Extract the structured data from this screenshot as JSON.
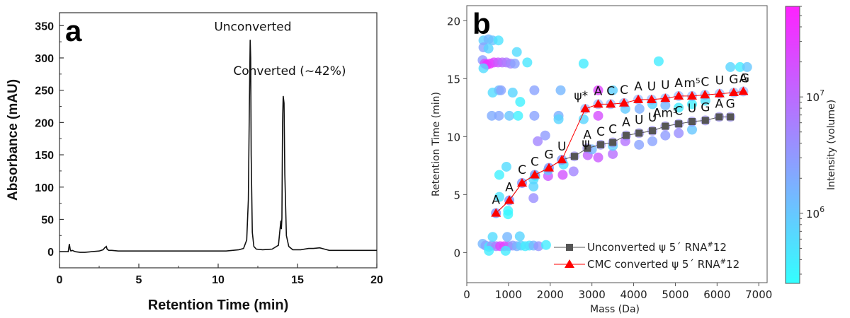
{
  "chart_data": [
    {
      "panel_label": "a",
      "type": "line",
      "title": "",
      "xlabel": "Retention Time (min)",
      "ylabel": "Absorbance (mAU)",
      "xlim": [
        0,
        20
      ],
      "ylim": [
        -25,
        370
      ],
      "xticks": [
        0,
        5,
        10,
        15,
        20
      ],
      "yticks": [
        0,
        50,
        100,
        150,
        200,
        250,
        300,
        350
      ],
      "grid": false,
      "annotations": [
        {
          "text": "Unconverted",
          "x": 12.05,
          "y": 328
        },
        {
          "text": "Converted (~42%)",
          "x": 14.15,
          "y": 241
        }
      ],
      "series": [
        {
          "name": "chromatogram",
          "color": "#111111",
          "x": [
            0,
            0.55,
            0.62,
            0.68,
            0.72,
            0.8,
            1.0,
            1.3,
            1.6,
            2.0,
            2.5,
            2.75,
            2.85,
            2.95,
            3.0,
            3.1,
            3.3,
            3.7,
            4.0,
            5.0,
            7.0,
            9.0,
            10.5,
            11.3,
            11.6,
            11.8,
            11.9,
            11.97,
            12.02,
            12.05,
            12.08,
            12.15,
            12.25,
            12.4,
            12.8,
            13.4,
            13.8,
            13.95,
            13.98,
            14.02,
            14.06,
            14.1,
            14.15,
            14.2,
            14.3,
            14.45,
            14.7,
            15.2,
            15.7,
            16.0,
            16.4,
            16.7,
            17.0,
            18.0,
            20.0
          ],
          "y": [
            0,
            0,
            12,
            3,
            1,
            2,
            0,
            -1,
            -1,
            0,
            1,
            3,
            6,
            8,
            4,
            2,
            2,
            1,
            1,
            1,
            1,
            1,
            1,
            3,
            5,
            18,
            80,
            230,
            328,
            300,
            150,
            30,
            8,
            4,
            3,
            4,
            10,
            48,
            35,
            52,
            200,
            241,
            230,
            120,
            25,
            8,
            3,
            3,
            5,
            5,
            6,
            4,
            2,
            2,
            2
          ]
        }
      ]
    },
    {
      "panel_label": "b",
      "type": "scatter",
      "title": "",
      "xlabel": "Mass (Da)",
      "ylabel": "Retention Time (min)",
      "xlim": [
        0,
        7200
      ],
      "ylim": [
        -2.6,
        21.3
      ],
      "xticks": [
        0,
        1000,
        2000,
        3000,
        4000,
        5000,
        6000,
        7000
      ],
      "yticks": [
        0,
        5,
        10,
        15,
        20
      ],
      "grid": false,
      "legend_position": "bottom-right",
      "colorbar": {
        "label": "Intensity (volume)",
        "scale": "log",
        "range": [
          250000,
          60000000
        ],
        "ticks": [
          {
            "value": 1000000,
            "label": "10",
            "exp": "6"
          },
          {
            "value": 10000000,
            "label": "10",
            "exp": "7"
          }
        ],
        "colormap": "cool",
        "low_color": "#33ffff",
        "high_color": "#ff22ff"
      },
      "features": [
        {
          "mass": 400,
          "rt": 18.3,
          "intensity": 800000
        },
        {
          "mass": 520,
          "rt": 18.4,
          "intensity": 1500000
        },
        {
          "mass": 620,
          "rt": 18.3,
          "intensity": 1100000
        },
        {
          "mass": 760,
          "rt": 18.3,
          "intensity": 500000
        },
        {
          "mass": 400,
          "rt": 17.7,
          "intensity": 2500000
        },
        {
          "mass": 520,
          "rt": 17.6,
          "intensity": 700000
        },
        {
          "mass": 1200,
          "rt": 17.3,
          "intensity": 600000
        },
        {
          "mass": 380,
          "rt": 16.6,
          "intensity": 3000000
        },
        {
          "mass": 430,
          "rt": 16.3,
          "intensity": 20000000
        },
        {
          "mass": 480,
          "rt": 16.2,
          "intensity": 50000000
        },
        {
          "mass": 560,
          "rt": 16.3,
          "intensity": 40000000
        },
        {
          "mass": 650,
          "rt": 16.4,
          "intensity": 25000000
        },
        {
          "mass": 750,
          "rt": 16.4,
          "intensity": 15000000
        },
        {
          "mass": 850,
          "rt": 16.4,
          "intensity": 9000000
        },
        {
          "mass": 950,
          "rt": 16.4,
          "intensity": 7000000
        },
        {
          "mass": 1050,
          "rt": 16.3,
          "intensity": 5000000
        },
        {
          "mass": 1150,
          "rt": 16.3,
          "intensity": 2500000
        },
        {
          "mass": 400,
          "rt": 15.9,
          "intensity": 600000
        },
        {
          "mass": 1450,
          "rt": 16.4,
          "intensity": 450000
        },
        {
          "mass": 2800,
          "rt": 16.3,
          "intensity": 400000
        },
        {
          "mass": 4600,
          "rt": 16.5,
          "intensity": 400000
        },
        {
          "mass": 620,
          "rt": 13.8,
          "intensity": 600000
        },
        {
          "mass": 770,
          "rt": 14.0,
          "intensity": 1200000
        },
        {
          "mass": 820,
          "rt": 14.0,
          "intensity": 2500000
        },
        {
          "mass": 1100,
          "rt": 13.8,
          "intensity": 700000
        },
        {
          "mass": 1620,
          "rt": 14.0,
          "intensity": 2500000
        },
        {
          "mass": 2250,
          "rt": 14.0,
          "intensity": 1500000
        },
        {
          "mass": 1280,
          "rt": 13.0,
          "intensity": 350000
        },
        {
          "mass": 600,
          "rt": 11.8,
          "intensity": 2000000
        },
        {
          "mass": 770,
          "rt": 11.8,
          "intensity": 2200000
        },
        {
          "mass": 1020,
          "rt": 11.8,
          "intensity": 1000000
        },
        {
          "mass": 1230,
          "rt": 11.8,
          "intensity": 350000
        },
        {
          "mass": 1620,
          "rt": 11.8,
          "intensity": 2500000
        },
        {
          "mass": 2200,
          "rt": 11.8,
          "intensity": 1800000
        },
        {
          "mass": 2200,
          "rt": 11.5,
          "intensity": 700000
        },
        {
          "mass": 1700,
          "rt": 9.6,
          "intensity": 5000000
        },
        {
          "mass": 1880,
          "rt": 10.1,
          "intensity": 3000000
        },
        {
          "mass": 2800,
          "rt": 11.5,
          "intensity": 700000
        },
        {
          "mass": 3150,
          "rt": 11.8,
          "intensity": 20000000
        },
        {
          "mass": 950,
          "rt": 7.4,
          "intensity": 600000
        },
        {
          "mass": 780,
          "rt": 6.7,
          "intensity": 350000
        },
        {
          "mass": 780,
          "rt": 4.8,
          "intensity": 500000
        },
        {
          "mass": 990,
          "rt": 3.6,
          "intensity": 300000
        },
        {
          "mass": 990,
          "rt": 3.3,
          "intensity": 300000
        },
        {
          "mass": 1600,
          "rt": 6.3,
          "intensity": 600000
        },
        {
          "mass": 1600,
          "rt": 5.7,
          "intensity": 700000
        },
        {
          "mass": 1600,
          "rt": 4.7,
          "intensity": 4000000
        },
        {
          "mass": 1640,
          "rt": 6.6,
          "intensity": 400000
        },
        {
          "mass": 1950,
          "rt": 6.6,
          "intensity": 15000000
        },
        {
          "mass": 2300,
          "rt": 6.7,
          "intensity": 18000000
        },
        {
          "mass": 2560,
          "rt": 7.0,
          "intensity": 5000000
        },
        {
          "mass": 2320,
          "rt": 7.6,
          "intensity": 500000
        },
        {
          "mass": 1950,
          "rt": 7.1,
          "intensity": 900000
        },
        {
          "mass": 2900,
          "rt": 8.4,
          "intensity": 12000000
        },
        {
          "mass": 3150,
          "rt": 8.2,
          "intensity": 15000000
        },
        {
          "mass": 3500,
          "rt": 8.5,
          "intensity": 9000000
        },
        {
          "mass": 3000,
          "rt": 8.9,
          "intensity": 1500000
        },
        {
          "mass": 3500,
          "rt": 9.2,
          "intensity": 800000
        },
        {
          "mass": 3800,
          "rt": 9.6,
          "intensity": 8000000
        },
        {
          "mass": 4130,
          "rt": 9.3,
          "intensity": 2500000
        },
        {
          "mass": 4450,
          "rt": 9.6,
          "intensity": 2500000
        },
        {
          "mass": 4760,
          "rt": 10.1,
          "intensity": 3000000
        },
        {
          "mass": 5080,
          "rt": 10.3,
          "intensity": 4000000
        },
        {
          "mass": 5400,
          "rt": 10.6,
          "intensity": 1000000
        },
        {
          "mass": 3800,
          "rt": 12.4,
          "intensity": 900000
        },
        {
          "mass": 4140,
          "rt": 12.4,
          "intensity": 1800000
        },
        {
          "mass": 4450,
          "rt": 12.8,
          "intensity": 700000
        },
        {
          "mass": 4760,
          "rt": 12.7,
          "intensity": 1500000
        },
        {
          "mass": 5080,
          "rt": 12.5,
          "intensity": 400000
        },
        {
          "mass": 5400,
          "rt": 12.8,
          "intensity": 400000
        },
        {
          "mass": 5720,
          "rt": 13.1,
          "intensity": 500000
        },
        {
          "mass": 3150,
          "rt": 14.0,
          "intensity": 25000000
        },
        {
          "mass": 3500,
          "rt": 14.0,
          "intensity": 800000
        },
        {
          "mass": 6320,
          "rt": 16.0,
          "intensity": 700000
        },
        {
          "mass": 6550,
          "rt": 16.0,
          "intensity": 400000
        },
        {
          "mass": 6720,
          "rt": 16.0,
          "intensity": 1000000
        },
        {
          "mass": 380,
          "rt": 0.75,
          "intensity": 1500000
        },
        {
          "mass": 450,
          "rt": 0.6,
          "intensity": 2500000
        },
        {
          "mass": 530,
          "rt": 0.5,
          "intensity": 500000
        },
        {
          "mass": 600,
          "rt": 0.6,
          "intensity": 3500000
        },
        {
          "mass": 700,
          "rt": 0.55,
          "intensity": 5000000
        },
        {
          "mass": 800,
          "rt": 0.55,
          "intensity": 25000000
        },
        {
          "mass": 900,
          "rt": 0.55,
          "intensity": 30000000
        },
        {
          "mass": 1000,
          "rt": 0.55,
          "intensity": 12000000
        },
        {
          "mass": 1100,
          "rt": 0.6,
          "intensity": 3000000
        },
        {
          "mass": 1200,
          "rt": 0.55,
          "intensity": 1800000
        },
        {
          "mass": 1300,
          "rt": 0.6,
          "intensity": 800000
        },
        {
          "mass": 1400,
          "rt": 0.55,
          "intensity": 400000
        },
        {
          "mass": 1500,
          "rt": 0.6,
          "intensity": 500000
        },
        {
          "mass": 1600,
          "rt": 0.6,
          "intensity": 1500000
        },
        {
          "mass": 1720,
          "rt": 0.55,
          "intensity": 3500000
        },
        {
          "mass": 1900,
          "rt": 0.65,
          "intensity": 400000
        },
        {
          "mass": 930,
          "rt": 0.15,
          "intensity": 400000
        },
        {
          "mass": 530,
          "rt": 0.15,
          "intensity": 400000
        },
        {
          "mass": 620,
          "rt": 1.35,
          "intensity": 600000
        },
        {
          "mass": 970,
          "rt": 1.35,
          "intensity": 1500000
        },
        {
          "mass": 1270,
          "rt": 1.4,
          "intensity": 700000
        }
      ],
      "series": [
        {
          "name": "Unconverted ψ 5´ RNA#12",
          "legend_label": "Unconverted ψ 5´ RNA",
          "legend_sup": "#",
          "legend_suffix": "12",
          "marker": "square",
          "color": "#555555",
          "points": [
            {
              "mass": 700,
              "rt": 3.4
            },
            {
              "mass": 1020,
              "rt": 4.5
            },
            {
              "mass": 1325,
              "rt": 6.0
            },
            {
              "mass": 1630,
              "rt": 6.7
            },
            {
              "mass": 1970,
              "rt": 7.3
            },
            {
              "mass": 2280,
              "rt": 8.0
            },
            {
              "mass": 2580,
              "rt": 8.3
            },
            {
              "mass": 2890,
              "rt": 9.0
            },
            {
              "mass": 3210,
              "rt": 9.3
            },
            {
              "mass": 3500,
              "rt": 9.5
            },
            {
              "mass": 3820,
              "rt": 10.1
            },
            {
              "mass": 4130,
              "rt": 10.3
            },
            {
              "mass": 4450,
              "rt": 10.5
            },
            {
              "mass": 4760,
              "rt": 10.9
            },
            {
              "mass": 5080,
              "rt": 11.1
            },
            {
              "mass": 5400,
              "rt": 11.3
            },
            {
              "mass": 5720,
              "rt": 11.4
            },
            {
              "mass": 6050,
              "rt": 11.7
            },
            {
              "mass": 6320,
              "rt": 11.7
            }
          ],
          "labels": [
            {
              "i": 7,
              "t": "ψ"
            },
            {
              "i": 8,
              "t": "A"
            },
            {
              "i": 9,
              "t": "C"
            },
            {
              "i": 10,
              "t": "C"
            },
            {
              "i": 11,
              "t": "A"
            },
            {
              "i": 12,
              "t": "U"
            },
            {
              "i": 13,
              "t": "U"
            },
            {
              "i": 14,
              "t": "Am⁵"
            },
            {
              "i": 15,
              "t": "C"
            },
            {
              "i": 16,
              "t": "U"
            },
            {
              "i": 17,
              "t": "G"
            },
            {
              "i": 18,
              "t": "A"
            },
            {
              "i": 19,
              "t": "G"
            }
          ]
        },
        {
          "name": "CMC converted ψ 5´ RNA#12",
          "legend_label": "CMC converted ψ 5´ RNA",
          "legend_sup": "#",
          "legend_suffix": "12",
          "marker": "triangle",
          "color": "#ff0000",
          "points": [
            {
              "mass": 700,
              "rt": 3.4
            },
            {
              "mass": 1020,
              "rt": 4.5
            },
            {
              "mass": 1325,
              "rt": 6.0
            },
            {
              "mass": 1630,
              "rt": 6.7
            },
            {
              "mass": 1970,
              "rt": 7.3
            },
            {
              "mass": 2280,
              "rt": 8.0
            },
            {
              "mass": 2840,
              "rt": 12.4
            },
            {
              "mass": 3150,
              "rt": 12.8
            },
            {
              "mass": 3450,
              "rt": 12.8
            },
            {
              "mass": 3770,
              "rt": 12.9
            },
            {
              "mass": 4110,
              "rt": 13.2
            },
            {
              "mass": 4430,
              "rt": 13.2
            },
            {
              "mass": 4760,
              "rt": 13.3
            },
            {
              "mass": 5080,
              "rt": 13.5
            },
            {
              "mass": 5400,
              "rt": 13.5
            },
            {
              "mass": 5710,
              "rt": 13.6
            },
            {
              "mass": 6060,
              "rt": 13.7
            },
            {
              "mass": 6400,
              "rt": 13.8
            },
            {
              "mass": 6630,
              "rt": 13.9
            }
          ],
          "labels": [
            {
              "i": 0,
              "t": "A"
            },
            {
              "i": 1,
              "t": "A"
            },
            {
              "i": 2,
              "t": "C"
            },
            {
              "i": 3,
              "t": "C"
            },
            {
              "i": 4,
              "t": "G"
            },
            {
              "i": 5,
              "t": "U"
            },
            {
              "i": 6,
              "t": "ψ*"
            },
            {
              "i": 7,
              "t": "A"
            },
            {
              "i": 8,
              "t": "C"
            },
            {
              "i": 9,
              "t": "C"
            },
            {
              "i": 10,
              "t": "A"
            },
            {
              "i": 11,
              "t": "U"
            },
            {
              "i": 12,
              "t": "U"
            },
            {
              "i": 13,
              "t": "A"
            },
            {
              "i": 14,
              "t": "m⁵"
            },
            {
              "i": 15,
              "t": "C"
            },
            {
              "i": 16,
              "t": "U"
            },
            {
              "i": 17,
              "t": "G"
            },
            {
              "i": 18,
              "t": "A"
            }
          ],
          "extra_labels": [
            {
              "mass": 6630,
              "rt": 13.9,
              "t": "G"
            }
          ]
        }
      ]
    }
  ]
}
